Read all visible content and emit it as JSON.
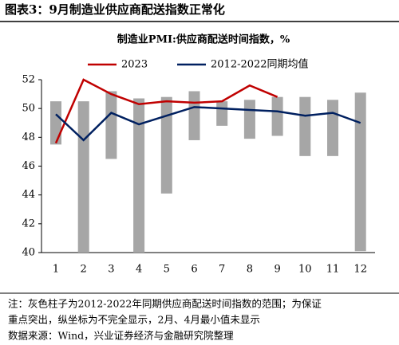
{
  "header": {
    "title": "图表3：9月制造业供应商配送指数正常化"
  },
  "chart_data": {
    "type": "range_bar_line",
    "title": "制造业PMI:供应商配送时间指数，%",
    "categories": [
      "1",
      "2",
      "3",
      "4",
      "5",
      "6",
      "7",
      "8",
      "9",
      "10",
      "11",
      "12"
    ],
    "ranges": {
      "color": "#a6a6a6",
      "low": [
        47.5,
        40,
        46.5,
        40,
        44.1,
        47.8,
        48.8,
        47.9,
        48.1,
        46.7,
        46.7,
        40.1
      ],
      "high": [
        50.5,
        50.5,
        51.2,
        50.7,
        50.8,
        51.2,
        50.5,
        50.6,
        50.8,
        50.8,
        50.6,
        51.1
      ]
    },
    "series": [
      {
        "name": "2023",
        "color": "#c00000",
        "values": [
          47.6,
          52.0,
          51.0,
          50.3,
          50.5,
          50.4,
          50.5,
          51.6,
          50.8,
          null,
          null,
          null
        ]
      },
      {
        "name": "2012-2022同期均值",
        "color": "#002060",
        "values": [
          49.6,
          47.8,
          49.7,
          48.9,
          49.5,
          50.1,
          50.0,
          49.9,
          49.8,
          49.5,
          49.7,
          49.0
        ]
      }
    ],
    "ylim": [
      40,
      52
    ],
    "yticks": [
      40,
      42,
      44,
      46,
      48,
      50,
      52
    ]
  },
  "notes": [
    "注：灰色柱子为2012-2022年同期供应商配送时间指数的范围；为保证",
    "重点突出，纵坐标为不完全显示，2月、4月最小值未显示",
    "数据来源：Wind，兴业证券经济与金融研究院整理"
  ]
}
